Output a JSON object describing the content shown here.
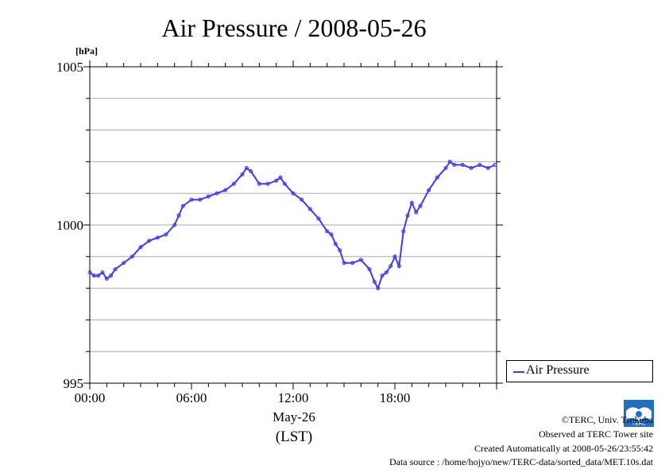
{
  "chart_data": {
    "type": "line",
    "title": "Air Pressure / 2008-05-26",
    "yunit": "[hPa]",
    "ylim": [
      995,
      1005
    ],
    "yticks": [
      995,
      1000,
      1005
    ],
    "xlim": [
      0,
      24
    ],
    "xticks": [
      {
        "value": 0,
        "label": "00:00"
      },
      {
        "value": 6,
        "label": "06:00"
      },
      {
        "value": 12,
        "label": "12:00"
      },
      {
        "value": 18,
        "label": "18:00"
      }
    ],
    "xlabel_date": "May-26",
    "xlabel_unit": "(LST)",
    "grid": true,
    "legend_position": "right",
    "series": [
      {
        "name": "Air Pressure",
        "color": "#3a3aff",
        "x": [
          0,
          0.25,
          0.5,
          0.75,
          1.0,
          1.25,
          1.5,
          2.0,
          2.5,
          3.0,
          3.5,
          4.0,
          4.5,
          5.0,
          5.25,
          5.5,
          6.0,
          6.5,
          7.0,
          7.5,
          8.0,
          8.5,
          9.0,
          9.25,
          9.5,
          10.0,
          10.5,
          11.0,
          11.25,
          11.5,
          12.0,
          12.5,
          13.0,
          13.5,
          14.0,
          14.25,
          14.5,
          14.75,
          15.0,
          15.5,
          16.0,
          16.5,
          16.8,
          17.0,
          17.25,
          17.5,
          17.75,
          18.0,
          18.25,
          18.5,
          18.75,
          19.0,
          19.25,
          19.5,
          20.0,
          20.5,
          21.0,
          21.25,
          21.5,
          22.0,
          22.5,
          23.0,
          23.5,
          23.9
        ],
        "values": [
          998.5,
          998.4,
          998.4,
          998.5,
          998.3,
          998.4,
          998.6,
          998.8,
          999.0,
          999.3,
          999.5,
          999.6,
          999.7,
          1000.0,
          1000.3,
          1000.6,
          1000.8,
          1000.8,
          1000.9,
          1001.0,
          1001.1,
          1001.3,
          1001.6,
          1001.8,
          1001.7,
          1001.3,
          1001.3,
          1001.4,
          1001.5,
          1001.3,
          1001.0,
          1000.8,
          1000.5,
          1000.2,
          999.8,
          999.7,
          999.4,
          999.2,
          998.8,
          998.8,
          998.9,
          998.6,
          998.2,
          998.0,
          998.4,
          998.5,
          998.7,
          999.0,
          998.7,
          999.8,
          1000.3,
          1000.7,
          1000.4,
          1000.6,
          1001.1,
          1001.5,
          1001.8,
          1002.0,
          1001.9,
          1001.9,
          1001.8,
          1001.9,
          1001.8,
          1001.9
        ]
      }
    ]
  },
  "footer": {
    "copyright": "©TERC, Univ. Tsukuba",
    "observed": "Observed at TERC Tower site",
    "created": "Created Automatically at 2008-05-26/23:55:42",
    "source": "Data source : /home/hojyo/new/TERC-data/sorted_data/MET.10s.dat"
  },
  "logo": {
    "text": "TERC",
    "color": "#1f6fc4"
  }
}
